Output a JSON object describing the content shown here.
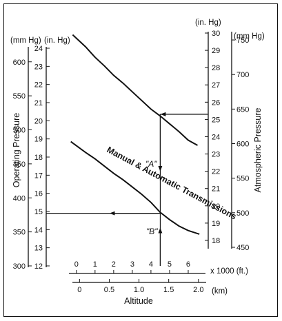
{
  "chart_data": {
    "type": "line",
    "title": "",
    "axes": {
      "left_mmhg": {
        "label": "Operating Pressure",
        "unit": "(mm Hg)",
        "ticks": [
          "300",
          "350",
          "400",
          "450",
          "500",
          "550",
          "600"
        ],
        "range": [
          300,
          620
        ]
      },
      "left_inhg": {
        "unit": "(in. Hg)",
        "ticks": [
          "12",
          "13",
          "14",
          "15",
          "16",
          "17",
          "18",
          "19",
          "20",
          "21",
          "22",
          "23",
          "24"
        ],
        "range": [
          12,
          24
        ]
      },
      "right_inhg": {
        "unit": "(in. Hg)",
        "ticks": [
          "18",
          "19",
          "20",
          "21",
          "22",
          "23",
          "24",
          "25",
          "26",
          "27",
          "28",
          "29",
          "30"
        ],
        "range": [
          17.6,
          30
        ]
      },
      "right_mmhg": {
        "label": "Atmospheric Pressure",
        "unit": "(mm Hg)",
        "ticks": [
          "450",
          "500",
          "550",
          "600",
          "650",
          "700",
          "750"
        ],
        "range": [
          450,
          760
        ]
      },
      "x_ft": {
        "unit": "x 1000 (ft.)",
        "ticks": [
          "0",
          "1",
          "2",
          "3",
          "4",
          "5",
          "6"
        ],
        "range": [
          -0.4,
          7
        ]
      },
      "x_km": {
        "label": "Altitude",
        "unit": "(km)",
        "ticks": [
          "0",
          "0.5",
          "1.0",
          "1.5",
          "2.0"
        ],
        "range": [
          -0.12,
          2.13
        ]
      }
    },
    "series": [
      {
        "name": "",
        "axis": "right_inhg",
        "x": [
          -0.2,
          0.5,
          1,
          1.5,
          2,
          2.5,
          3,
          3.5,
          4,
          4.5,
          5,
          5.5,
          6,
          6.5
        ],
        "y": [
          29.9,
          29.2,
          28.6,
          28.1,
          27.55,
          27.1,
          26.6,
          26.1,
          25.6,
          25.2,
          24.75,
          24.3,
          23.8,
          23.5
        ]
      },
      {
        "name": "Manual & Automatic Transmissions",
        "axis": "left_inhg",
        "x": [
          -0.3,
          0.5,
          1,
          1.5,
          2,
          2.5,
          3,
          3.5,
          4,
          4.5,
          5,
          5.5,
          6,
          6.6
        ],
        "y": [
          18.85,
          18.25,
          17.9,
          17.5,
          17.1,
          16.75,
          16.35,
          15.95,
          15.5,
          14.95,
          14.55,
          14.2,
          13.95,
          13.75
        ]
      }
    ],
    "annotations": [
      {
        "label": "\"A\"",
        "altitude_x1000ft": 4.5,
        "atmospheric_inhg": 25.3
      },
      {
        "label": "\"B\"",
        "altitude_x1000ft": 4.5,
        "operating_inhg": 14.9
      }
    ]
  }
}
